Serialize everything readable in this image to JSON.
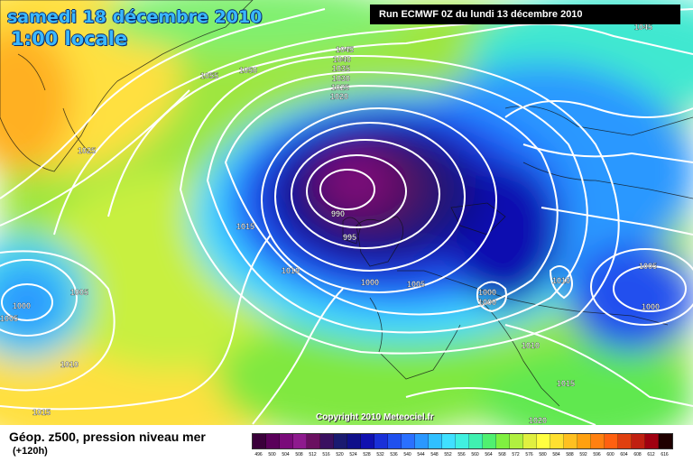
{
  "header": {
    "date": "samedi 18 décembre 2010",
    "time": "1:00 locale",
    "run": "Run ECMWF 0Z du lundi 13 décembre 2010"
  },
  "footer": {
    "field": "Géop. z500, pression niveau mer",
    "lead": "(+120h)",
    "copyright": "Copyright 2010 Meteociel.fr"
  },
  "legend": {
    "values": [
      "496",
      "500",
      "504",
      "508",
      "512",
      "516",
      "520",
      "524",
      "528",
      "532",
      "536",
      "540",
      "544",
      "548",
      "552",
      "556",
      "560",
      "564",
      "568",
      "572",
      "576",
      "580",
      "584",
      "588",
      "592",
      "596",
      "600",
      "604",
      "608",
      "612",
      "616"
    ],
    "colors": [
      "#3a003a",
      "#5a005a",
      "#7a0a7a",
      "#8e1a8e",
      "#6a1060",
      "#3a1060",
      "#1a1a70",
      "#10108a",
      "#1010b0",
      "#1a30d8",
      "#2050ee",
      "#2a70ff",
      "#2a98ff",
      "#30c0ff",
      "#40e0ff",
      "#40f0e0",
      "#40f0b0",
      "#50f070",
      "#80f040",
      "#b0f040",
      "#e0f040",
      "#ffff40",
      "#ffe030",
      "#ffc020",
      "#ffa010",
      "#ff8010",
      "#ff6010",
      "#e04010",
      "#c02010",
      "#a00010",
      "#200000"
    ]
  },
  "isobar_labels": [
    "1045",
    "1040",
    "1035",
    "1030",
    "1025",
    "1020",
    "1055",
    "1050",
    "1025",
    "1045",
    "1015",
    "1010",
    "1005",
    "1000",
    "1005",
    "1010",
    "1015",
    "990",
    "995",
    "1000",
    "1005",
    "1000",
    "1000",
    "1010",
    "1005",
    "1000",
    "1010",
    "1015",
    "1020"
  ]
}
